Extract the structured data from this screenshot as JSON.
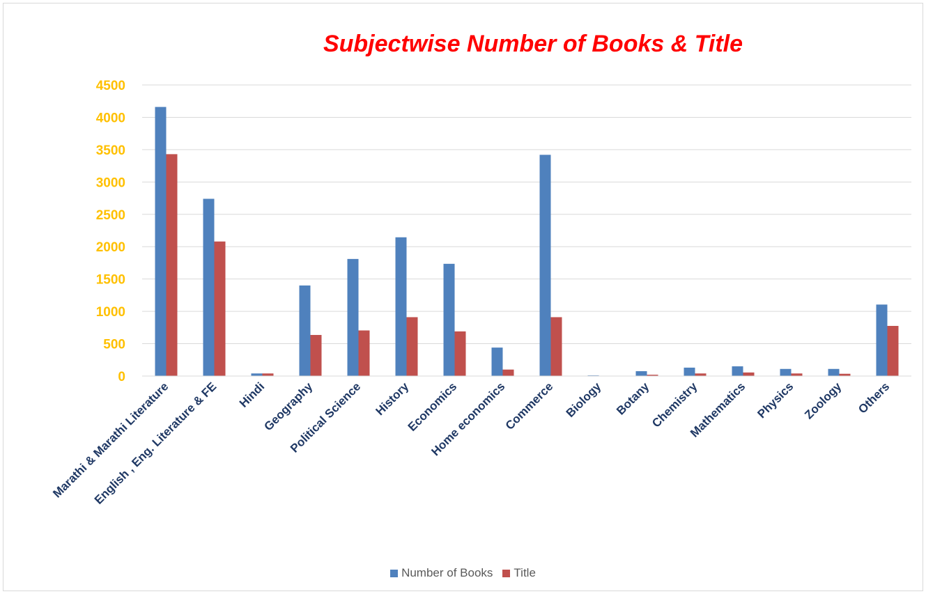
{
  "chart_data": {
    "type": "bar",
    "title": "Subjectwise Number of Books & Title",
    "categories": [
      "Marathi & Marathi Literature",
      "English , Eng. Literature & FE",
      "Hindi",
      "Geography",
      "Political Science",
      "History",
      "Economics",
      "Home economics",
      "Commerce",
      "Biology",
      "Botany",
      "Chemistry",
      "Mathematics",
      "Physics",
      "Zoology",
      "Others"
    ],
    "series": [
      {
        "name": "Number of Books",
        "color": "#4f81bd",
        "values": [
          4160,
          2740,
          40,
          1400,
          1810,
          2145,
          1735,
          440,
          3420,
          10,
          75,
          130,
          150,
          110,
          110,
          1105
        ]
      },
      {
        "name": "Title",
        "color": "#c0504d",
        "values": [
          3430,
          2080,
          40,
          635,
          705,
          910,
          690,
          100,
          910,
          5,
          20,
          40,
          55,
          40,
          35,
          775
        ]
      }
    ],
    "ylim": [
      0,
      4500
    ],
    "yticks": [
      0,
      500,
      1000,
      1500,
      2000,
      2500,
      3000,
      3500,
      4000,
      4500
    ],
    "grid": true,
    "legend_position": "bottom",
    "colors": {
      "title": "#ff0000",
      "y_tick_labels": "#ffc000",
      "x_tick_labels": "#1f3864",
      "gridlines": "#d9d9d9"
    }
  }
}
